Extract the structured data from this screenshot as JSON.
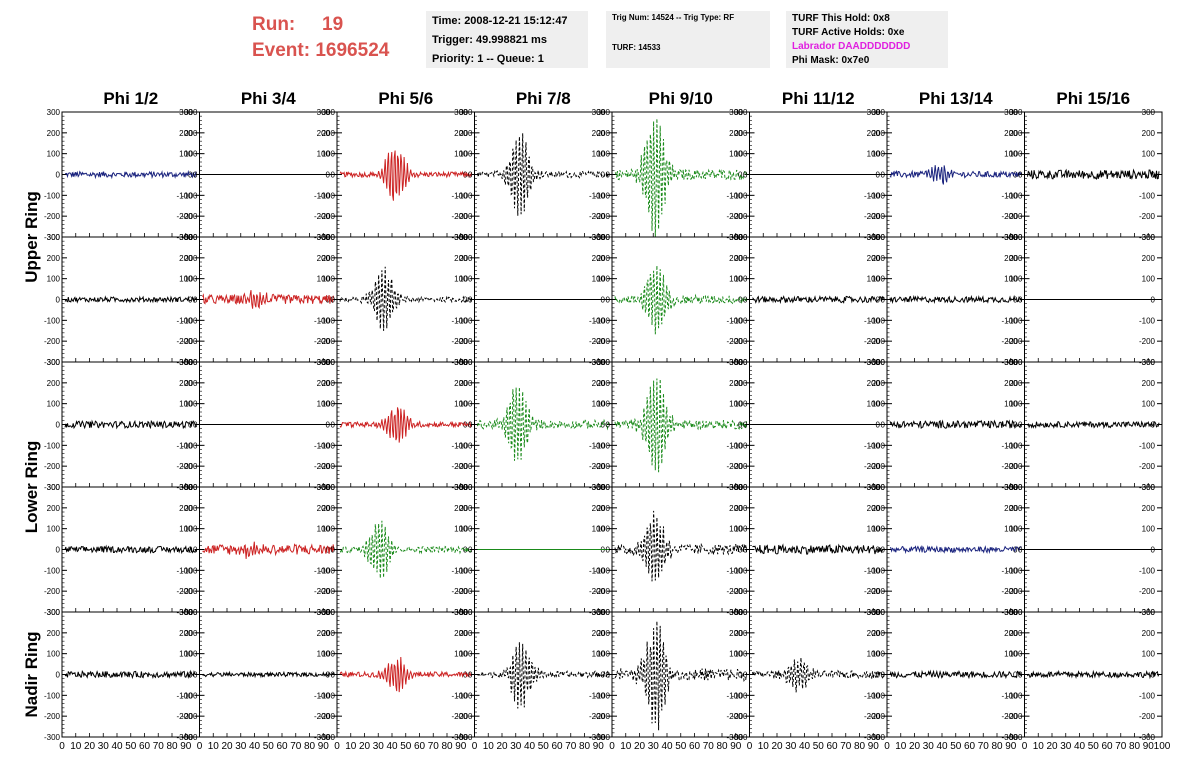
{
  "header": {
    "run_label": "Run:",
    "run_value": "19",
    "event_label": "Event:",
    "event_value": "1696524",
    "time": "Time: 2008-12-21 15:12:47",
    "trigger": "Trigger: 49.998821 ms",
    "priority": "Priority: 1 -- Queue: 1",
    "trig_num": "Trig Num: 14524 -- Trig Type: RF",
    "turf": "TURF: 14533",
    "turf_hold": "TURF This Hold: 0x8",
    "turf_active": "TURF Active Holds: 0xe",
    "labrador": "Labrador DAADDDDDDD",
    "phi_mask": "Phi Mask: 0x7e0"
  },
  "colors": {
    "blue": "#1a237e",
    "red": "#cc2222",
    "green": "#1a8a1a",
    "black": "#000000",
    "title_red": "#d9534f",
    "magenta": "#e020e0"
  },
  "chart_data": {
    "type": "line",
    "columns": [
      "Phi 1/2",
      "Phi 3/4",
      "Phi 5/6",
      "Phi 7/8",
      "Phi 9/10",
      "Phi 11/12",
      "Phi 13/14",
      "Phi 15/16"
    ],
    "row_labels": [
      {
        "text": "Upper Ring",
        "rows": [
          0,
          1
        ]
      },
      {
        "text": "Lower Ring",
        "rows": [
          2,
          3
        ]
      },
      {
        "text": "Nadir Ring",
        "rows": [
          4
        ]
      }
    ],
    "ylim": [
      -300,
      300
    ],
    "y_ticks": [
      -300,
      -200,
      -100,
      0,
      100,
      200,
      300
    ],
    "xlim": [
      0,
      100
    ],
    "x_tick_labels": [
      "0",
      "10",
      "20",
      "30",
      "40",
      "50",
      "60",
      "70",
      "80",
      "90",
      "100"
    ],
    "panels": [
      [
        {
          "color": "blue",
          "style": "solid",
          "amp": 14,
          "burst": 0,
          "center": 0
        },
        {
          "color": "black",
          "style": "solid",
          "amp": 0,
          "burst": 0,
          "center": 0
        },
        {
          "color": "red",
          "style": "solid",
          "amp": 12,
          "burst": 130,
          "center": 42
        },
        {
          "color": "black",
          "style": "dashed",
          "amp": 15,
          "burst": 200,
          "center": 32
        },
        {
          "color": "green",
          "style": "dashed",
          "amp": 25,
          "burst": 290,
          "center": 30
        },
        {
          "color": "black",
          "style": "solid",
          "amp": 0,
          "burst": 0,
          "center": 0
        },
        {
          "color": "blue",
          "style": "solid",
          "amp": 15,
          "burst": 45,
          "center": 38
        },
        {
          "color": "black",
          "style": "solid",
          "amp": 22,
          "burst": 0,
          "center": 0
        }
      ],
      [
        {
          "color": "black",
          "style": "solid",
          "amp": 12,
          "burst": 0,
          "center": 0
        },
        {
          "color": "red",
          "style": "solid",
          "amp": 22,
          "burst": 40,
          "center": 40
        },
        {
          "color": "black",
          "style": "dashed",
          "amp": 12,
          "burst": 150,
          "center": 33
        },
        {
          "color": "black",
          "style": "solid",
          "amp": 0,
          "burst": 0,
          "center": 0
        },
        {
          "color": "green",
          "style": "dashed",
          "amp": 20,
          "burst": 170,
          "center": 31
        },
        {
          "color": "black",
          "style": "solid",
          "amp": 15,
          "burst": 0,
          "center": 0
        },
        {
          "color": "black",
          "style": "solid",
          "amp": 14,
          "burst": 0,
          "center": 0
        },
        {
          "color": "black",
          "style": "solid",
          "amp": 0,
          "burst": 0,
          "center": 0
        }
      ],
      [
        {
          "color": "black",
          "style": "solid",
          "amp": 16,
          "burst": 0,
          "center": 0
        },
        {
          "color": "black",
          "style": "solid",
          "amp": 0,
          "burst": 0,
          "center": 0
        },
        {
          "color": "red",
          "style": "solid",
          "amp": 12,
          "burst": 90,
          "center": 44
        },
        {
          "color": "green",
          "style": "dashed",
          "amp": 20,
          "burst": 190,
          "center": 30
        },
        {
          "color": "green",
          "style": "dashed",
          "amp": 22,
          "burst": 240,
          "center": 31
        },
        {
          "color": "black",
          "style": "solid",
          "amp": 0,
          "burst": 0,
          "center": 0
        },
        {
          "color": "black",
          "style": "solid",
          "amp": 18,
          "burst": 0,
          "center": 0
        },
        {
          "color": "black",
          "style": "solid",
          "amp": 14,
          "burst": 0,
          "center": 0
        }
      ],
      [
        {
          "color": "black",
          "style": "solid",
          "amp": 15,
          "burst": 0,
          "center": 0
        },
        {
          "color": "red",
          "style": "solid",
          "amp": 25,
          "burst": 40,
          "center": 40
        },
        {
          "color": "green",
          "style": "dashed",
          "amp": 15,
          "burst": 140,
          "center": 30
        },
        {
          "color": "green",
          "style": "solid",
          "amp": 0,
          "burst": 0,
          "center": 0
        },
        {
          "color": "black",
          "style": "dashed",
          "amp": 25,
          "burst": 170,
          "center": 30
        },
        {
          "color": "black",
          "style": "solid",
          "amp": 22,
          "burst": 0,
          "center": 0
        },
        {
          "color": "blue",
          "style": "solid",
          "amp": 14,
          "burst": 0,
          "center": 0
        },
        {
          "color": "black",
          "style": "solid",
          "amp": 0,
          "burst": 0,
          "center": 0
        }
      ],
      [
        {
          "color": "black",
          "style": "solid",
          "amp": 15,
          "burst": 0,
          "center": 0
        },
        {
          "color": "black",
          "style": "solid",
          "amp": 10,
          "burst": 0,
          "center": 0
        },
        {
          "color": "red",
          "style": "solid",
          "amp": 12,
          "burst": 85,
          "center": 43
        },
        {
          "color": "black",
          "style": "dashed",
          "amp": 15,
          "burst": 160,
          "center": 33
        },
        {
          "color": "black",
          "style": "dashed",
          "amp": 30,
          "burst": 260,
          "center": 31
        },
        {
          "color": "black",
          "style": "dashed",
          "amp": 18,
          "burst": 80,
          "center": 35
        },
        {
          "color": "black",
          "style": "solid",
          "amp": 15,
          "burst": 0,
          "center": 0
        },
        {
          "color": "black",
          "style": "solid",
          "amp": 14,
          "burst": 0,
          "center": 0
        }
      ]
    ]
  }
}
